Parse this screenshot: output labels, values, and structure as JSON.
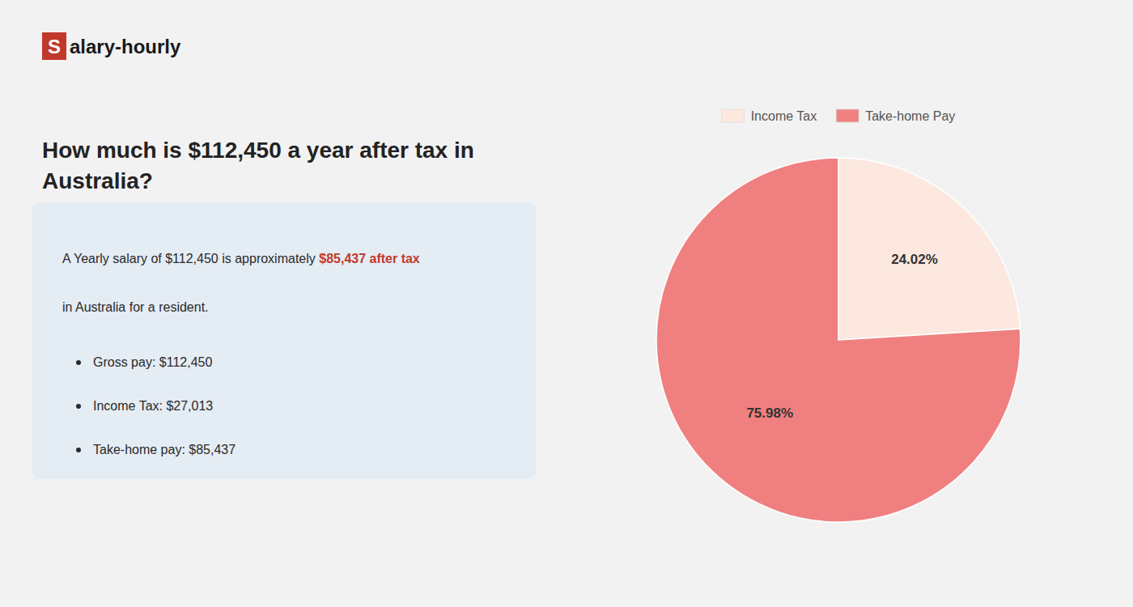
{
  "chart_data": {
    "type": "pie",
    "title": "How much is $112,450 a year after tax in\nAustralia?",
    "categories": [
      "Income Tax",
      "Take-home Pay"
    ],
    "values": [
      24.02,
      75.98
    ],
    "value_labels": [
      "24.02%",
      "75.98%"
    ],
    "colors": [
      "#fce8df",
      "#f08080"
    ],
    "data_labels": true,
    "legend": "top",
    "annotations": [
      "S",
      "alary-hourly",
      "A Yearly salary of $112,450 is approximately ",
      "$85,437 after tax",
      "in Australia for a resident.",
      "Gross pay: $112,450",
      "Income Tax: $27,013",
      "Take-home pay: $85,437"
    ]
  }
}
